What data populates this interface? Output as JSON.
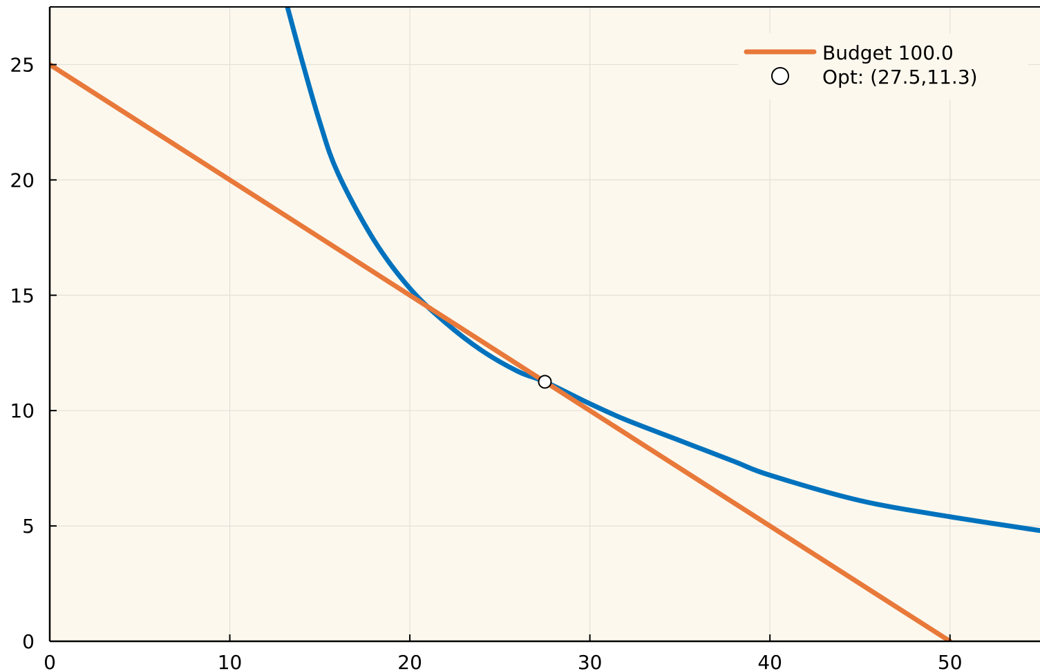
{
  "chart_data": {
    "type": "line",
    "title": "",
    "xlabel": "",
    "ylabel": "",
    "xlim": [
      0,
      55
    ],
    "ylim": [
      0,
      27.5
    ],
    "grid": true,
    "legend_position": "top-right",
    "x_ticks": [
      0,
      10,
      20,
      30,
      40,
      50
    ],
    "y_ticks": [
      0,
      5,
      10,
      15,
      20,
      25
    ],
    "x_tick_labels": [
      "0",
      "10",
      "20",
      "30",
      "40",
      "50"
    ],
    "y_tick_labels": [
      "0",
      "5",
      "10",
      "15",
      "20",
      "25"
    ],
    "series": [
      {
        "color": "#0072bd",
        "kind": "indifference_curve",
        "points": [
          [
            13.2,
            27.5
          ],
          [
            14,
            25.2
          ],
          [
            15,
            22.5
          ],
          [
            16,
            20.3
          ],
          [
            18,
            17.4
          ],
          [
            20,
            15.3
          ],
          [
            22,
            13.8
          ],
          [
            24,
            12.6
          ],
          [
            26,
            11.7
          ],
          [
            27.5,
            11.25
          ],
          [
            30,
            10.3
          ],
          [
            32,
            9.6
          ],
          [
            35,
            8.7
          ],
          [
            38,
            7.8
          ],
          [
            40,
            7.2
          ],
          [
            45,
            6.1
          ],
          [
            50,
            5.4
          ],
          [
            55,
            4.8
          ]
        ]
      },
      {
        "name": "Budget 100.0",
        "color": "#e8793a",
        "kind": "budget_line",
        "points": [
          [
            0,
            25
          ],
          [
            50,
            0
          ]
        ]
      },
      {
        "name": "Opt: (27.5,11.3)",
        "kind": "marker",
        "marker": "circle",
        "points": [
          [
            27.5,
            11.25
          ]
        ]
      }
    ]
  },
  "style": {
    "plot_background": "#fdf8ee",
    "axis_color": "#000000",
    "grid_color": "#e4e0d8",
    "budget_color": "#e8793a",
    "curve_color": "#0072bd",
    "marker_fill": "#ffffff",
    "marker_stroke": "#000000"
  },
  "legend": {
    "items": [
      {
        "label": "Budget 100.0",
        "symbol": "line"
      },
      {
        "label": "Opt: (27.5,11.3)",
        "symbol": "circle"
      }
    ]
  }
}
